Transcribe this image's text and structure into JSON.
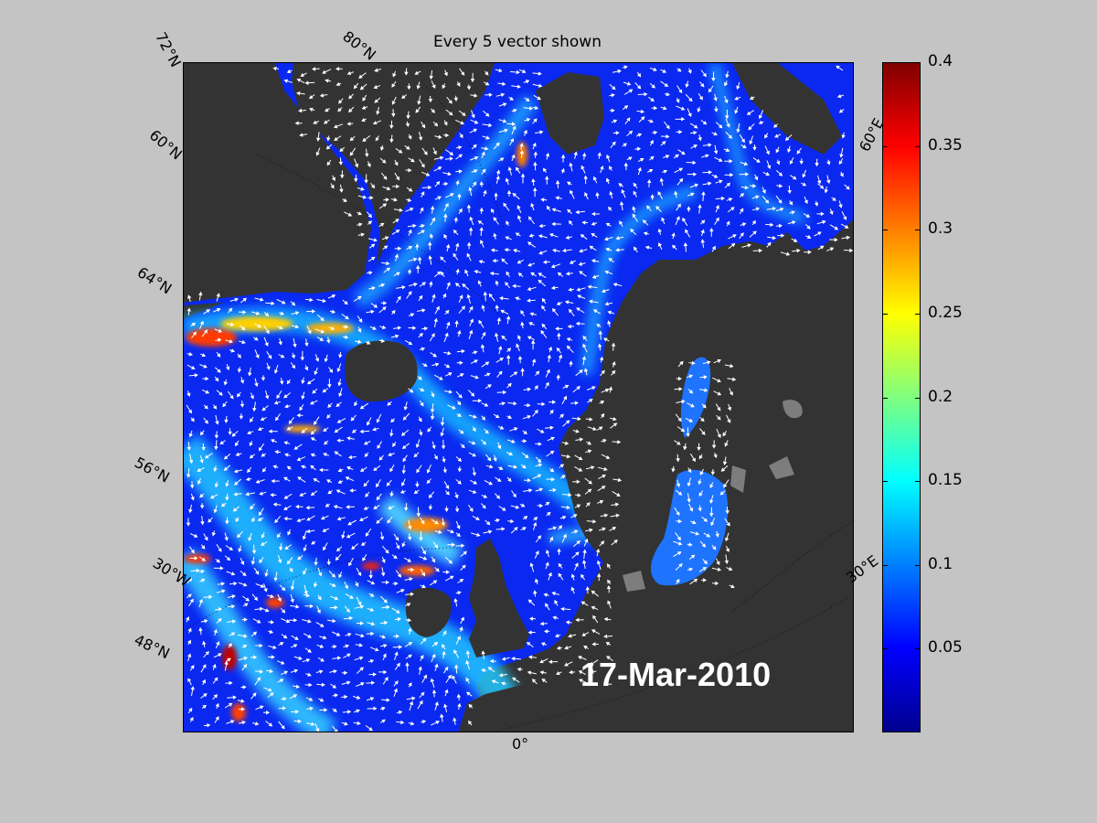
{
  "title": "Every 5 vector shown",
  "date": "17-Mar-2010",
  "lat_labels": [
    "72°N",
    "80°N",
    "60°N",
    "64°N",
    "56°N",
    "48°N"
  ],
  "lon_labels": [
    "30°W",
    "0°",
    "30°E",
    "60°E"
  ],
  "colorbar": {
    "ticks": [
      "0.4",
      "0.35",
      "0.3",
      "0.25",
      "0.2",
      "0.15",
      "0.1",
      "0.05"
    ],
    "min": 0,
    "max": 0.4,
    "colormap": [
      "#00008f",
      "#0000ff",
      "#00ffff",
      "#ffff00",
      "#ff0000",
      "#800000"
    ]
  },
  "colors": {
    "land": "#333333",
    "background": "#c4c4c4",
    "ocean_base": "#0a28f0",
    "vector": "#ffffff"
  }
}
